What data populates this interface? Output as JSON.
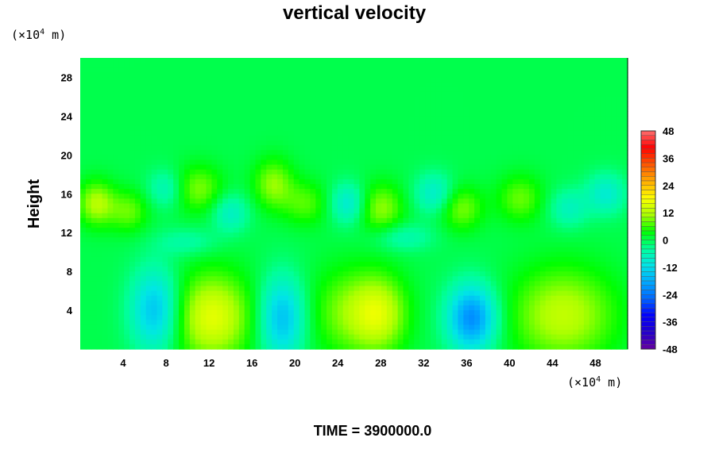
{
  "chart_data": {
    "type": "heatmap",
    "title": "vertical velocity",
    "ylabel": "Height",
    "x_unit": {
      "prefix": "(×10",
      "exp": "4",
      "suffix": " m)"
    },
    "y_unit": {
      "prefix": "(×10",
      "exp": "4",
      "suffix": " m)"
    },
    "xlim": [
      0,
      51
    ],
    "ylim": [
      0,
      30
    ],
    "x_ticks": [
      "4",
      "8",
      "12",
      "16",
      "20",
      "24",
      "28",
      "32",
      "36",
      "40",
      "44",
      "48"
    ],
    "y_ticks": [
      "4",
      "8",
      "12",
      "16",
      "20",
      "24",
      "28"
    ],
    "colorbar": {
      "min": -48,
      "max": 48,
      "ticks": [
        "48",
        "36",
        "24",
        "12",
        "0",
        "-12",
        "-24",
        "-36",
        "-48"
      ],
      "colors": [
        "#6600a0",
        "#2200cc",
        "#0000ff",
        "#0066ff",
        "#00aaff",
        "#00e6e6",
        "#00ff99",
        "#00ff00",
        "#aaff00",
        "#ffff00",
        "#ffaa00",
        "#ff5500",
        "#ff0000",
        "#ff6f6f"
      ]
    },
    "background_value": 0,
    "features": [
      {
        "x": 7.0,
        "y": 4.0,
        "value": -16,
        "sx": 1.6,
        "sy": 3.0
      },
      {
        "x": 12.3,
        "y": 3.3,
        "value": 16,
        "sx": 2.6,
        "sy": 3.2
      },
      {
        "x": 18.8,
        "y": 3.2,
        "value": -16,
        "sx": 1.5,
        "sy": 3.0
      },
      {
        "x": 25.0,
        "y": 3.8,
        "value": 9,
        "sx": 2.5,
        "sy": 3.2
      },
      {
        "x": 28.0,
        "y": 3.6,
        "value": 12,
        "sx": 1.8,
        "sy": 2.8
      },
      {
        "x": 36.5,
        "y": 3.2,
        "value": -22,
        "sx": 1.6,
        "sy": 2.4
      },
      {
        "x": 45.0,
        "y": 3.5,
        "value": 13,
        "sx": 3.4,
        "sy": 3.4
      },
      {
        "x": 1.5,
        "y": 15.0,
        "value": 12,
        "sx": 1.2,
        "sy": 1.6
      },
      {
        "x": 4.5,
        "y": 14.2,
        "value": 8,
        "sx": 1.3,
        "sy": 1.5
      },
      {
        "x": 11.0,
        "y": 16.5,
        "value": 9,
        "sx": 1.6,
        "sy": 1.7
      },
      {
        "x": 18.0,
        "y": 17.0,
        "value": 10,
        "sx": 1.3,
        "sy": 1.8
      },
      {
        "x": 21.0,
        "y": 15.0,
        "value": 7,
        "sx": 1.5,
        "sy": 1.6
      },
      {
        "x": 28.0,
        "y": 14.5,
        "value": 10,
        "sx": 1.5,
        "sy": 1.8
      },
      {
        "x": 35.5,
        "y": 14.5,
        "value": 9,
        "sx": 1.4,
        "sy": 1.6
      },
      {
        "x": 41.0,
        "y": 15.5,
        "value": 8,
        "sx": 1.5,
        "sy": 1.7
      },
      {
        "x": 25.0,
        "y": 15.0,
        "value": -10,
        "sx": 1.2,
        "sy": 1.5
      },
      {
        "x": 33.0,
        "y": 16.0,
        "value": -9,
        "sx": 1.3,
        "sy": 1.5
      },
      {
        "x": 14.0,
        "y": 14.0,
        "value": -8,
        "sx": 1.2,
        "sy": 1.4
      },
      {
        "x": 8.0,
        "y": 16.5,
        "value": -7,
        "sx": 1.2,
        "sy": 1.4
      },
      {
        "x": 45.5,
        "y": 14.5,
        "value": -7,
        "sx": 1.3,
        "sy": 1.4
      },
      {
        "x": 49.0,
        "y": 16.0,
        "value": -9,
        "sx": 1.3,
        "sy": 1.5
      },
      {
        "x": 30.0,
        "y": 11.5,
        "value": -6,
        "sx": 2.0,
        "sy": 1.0
      },
      {
        "x": 10.0,
        "y": 11.0,
        "value": -5,
        "sx": 2.0,
        "sy": 1.0
      }
    ]
  },
  "footer": {
    "time_label": "TIME = 3900000.0"
  }
}
